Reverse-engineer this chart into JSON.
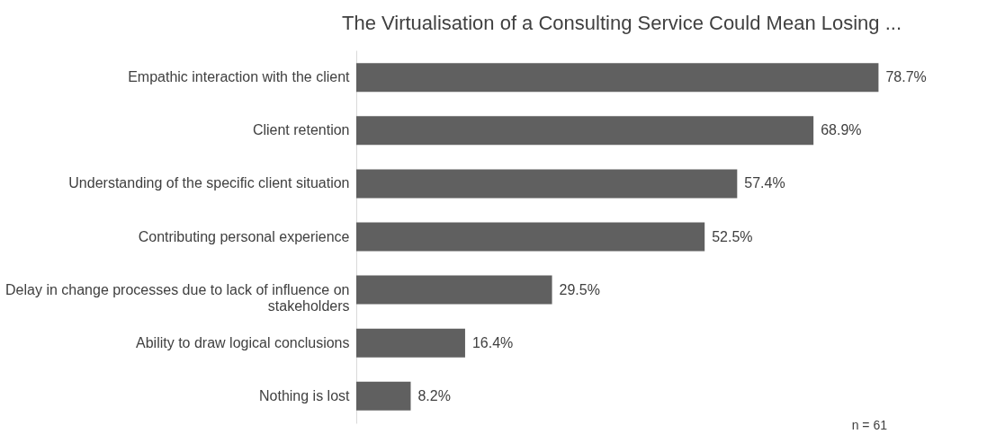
{
  "chart_data": {
    "type": "bar",
    "orientation": "horizontal",
    "title": "The Virtualisation of a Consulting Service Could Mean Losing ...",
    "categories": [
      "Empathic interaction with the client",
      "Client retention",
      "Understanding of the specific client situation",
      "Contributing personal experience",
      "Delay in change processes due to lack of influence on stakeholders",
      "Ability to draw logical conclusions",
      "Nothing is lost"
    ],
    "values": [
      78.7,
      68.9,
      57.4,
      52.5,
      29.5,
      16.4,
      8.2
    ],
    "value_labels": [
      "78.7%",
      "68.9%",
      "57.4%",
      "52.5%",
      "29.5%",
      "16.4%",
      "8.2%"
    ],
    "color": "#606060",
    "annotations": [
      "n = 61"
    ],
    "tick_labels": "y",
    "grid": false
  }
}
